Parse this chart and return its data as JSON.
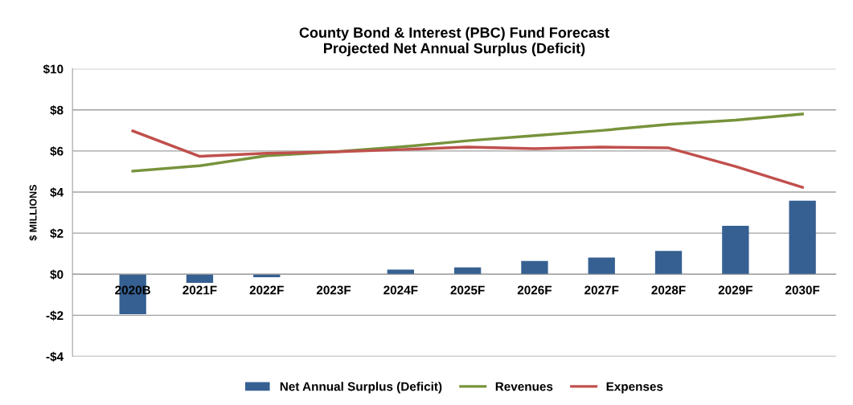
{
  "chart_data": {
    "type": "bar",
    "title": "County Bond & Interest (PBC) Fund Forecast\nProjected Net Annual Surplus (Deficit)",
    "ylabel": "$ MILLIONS",
    "categories": [
      "2020B",
      "2021F",
      "2022F",
      "2023F",
      "2024F",
      "2025F",
      "2026F",
      "2027F",
      "2028F",
      "2029F",
      "2030F"
    ],
    "series": [
      {
        "name": "Net Annual Surplus (Deficit)",
        "color": "#366092",
        "values": [
          -1.95,
          -0.42,
          -0.15,
          0,
          0.23,
          0.33,
          0.65,
          0.81,
          1.14,
          2.36,
          3.58
        ]
      },
      {
        "name": "Revenues",
        "type": "line",
        "color": "#77933c",
        "values": [
          5.02,
          5.28,
          5.77,
          5.96,
          6.2,
          6.5,
          6.75,
          7.0,
          7.3,
          7.5,
          7.8
        ]
      },
      {
        "name": "Expenses",
        "type": "line",
        "color": "#c0504d",
        "values": [
          6.98,
          5.74,
          5.89,
          5.96,
          6.07,
          6.19,
          6.11,
          6.19,
          6.15,
          5.25,
          4.23
        ]
      }
    ],
    "ylim": [
      -4,
      10
    ],
    "yticks": [
      {
        "value": -4,
        "label": "-$4"
      },
      {
        "value": -2,
        "label": "-$2"
      },
      {
        "value": 0,
        "label": "$0"
      },
      {
        "value": 2,
        "label": "$2"
      },
      {
        "value": 4,
        "label": "$4"
      },
      {
        "value": 6,
        "label": "$6"
      },
      {
        "value": 8,
        "label": "$8"
      },
      {
        "value": 10,
        "label": "$10"
      }
    ],
    "grid": "y",
    "legend": "bottom",
    "marker": "none",
    "line_style": "solid"
  }
}
